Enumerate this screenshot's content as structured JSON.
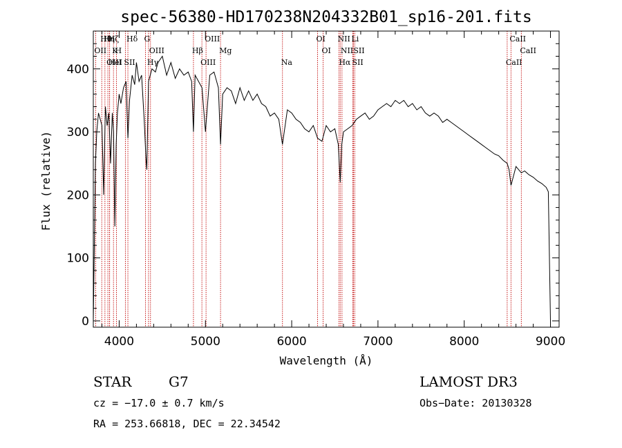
{
  "chart_data": {
    "type": "line",
    "title": "spec-56380-HD170238N204332B01_sp16-201.fits",
    "xlabel": "Wavelength (Å)",
    "ylabel": "Flux (relative)",
    "xlim": [
      3700,
      9100
    ],
    "ylim": [
      -10,
      460
    ],
    "xticks": [
      4000,
      5000,
      6000,
      7000,
      8000,
      9000
    ],
    "yticks": [
      0,
      100,
      200,
      300,
      400
    ],
    "series": [
      {
        "name": "flux",
        "x": [
          3700,
          3712,
          3725,
          3740,
          3760,
          3780,
          3800,
          3820,
          3840,
          3860,
          3880,
          3900,
          3920,
          3935,
          3950,
          3965,
          3980,
          4000,
          4020,
          4050,
          4080,
          4101,
          4120,
          4150,
          4180,
          4200,
          4230,
          4260,
          4290,
          4310,
          4320,
          4340,
          4380,
          4420,
          4450,
          4500,
          4550,
          4600,
          4650,
          4700,
          4750,
          4800,
          4840,
          4861,
          4880,
          4920,
          4960,
          5000,
          5050,
          5100,
          5150,
          5175,
          5200,
          5250,
          5300,
          5350,
          5400,
          5450,
          5500,
          5550,
          5600,
          5650,
          5700,
          5750,
          5800,
          5850,
          5893,
          5950,
          6000,
          6050,
          6100,
          6150,
          6200,
          6250,
          6300,
          6350,
          6400,
          6450,
          6500,
          6540,
          6563,
          6580,
          6600,
          6650,
          6700,
          6750,
          6800,
          6850,
          6900,
          6950,
          7000,
          7050,
          7100,
          7150,
          7200,
          7250,
          7300,
          7350,
          7400,
          7450,
          7500,
          7550,
          7600,
          7650,
          7700,
          7750,
          7800,
          7850,
          7900,
          7950,
          8000,
          8050,
          8100,
          8150,
          8200,
          8250,
          8300,
          8350,
          8400,
          8450,
          8498,
          8520,
          8542,
          8600,
          8662,
          8700,
          8750,
          8800,
          8850,
          8900,
          8950,
          8975,
          9000
        ],
        "values": [
          0,
          120,
          250,
          300,
          330,
          320,
          310,
          200,
          340,
          310,
          330,
          250,
          330,
          300,
          150,
          280,
          330,
          360,
          345,
          370,
          380,
          290,
          350,
          390,
          375,
          410,
          380,
          390,
          320,
          260,
          240,
          380,
          400,
          395,
          410,
          420,
          390,
          410,
          385,
          400,
          390,
          395,
          380,
          300,
          390,
          380,
          370,
          300,
          390,
          395,
          370,
          280,
          360,
          370,
          365,
          345,
          370,
          350,
          365,
          350,
          360,
          345,
          340,
          325,
          330,
          320,
          280,
          335,
          330,
          320,
          315,
          305,
          300,
          310,
          290,
          285,
          310,
          300,
          305,
          280,
          220,
          280,
          300,
          305,
          310,
          320,
          325,
          330,
          320,
          325,
          335,
          340,
          345,
          340,
          350,
          345,
          350,
          340,
          345,
          335,
          340,
          330,
          325,
          330,
          325,
          315,
          320,
          315,
          310,
          305,
          300,
          295,
          290,
          285,
          280,
          275,
          270,
          265,
          262,
          255,
          250,
          240,
          215,
          245,
          235,
          238,
          232,
          228,
          222,
          218,
          212,
          205,
          0
        ]
      }
    ],
    "lines": [
      {
        "name": "Hθ",
        "x": 3798
      },
      {
        "name": "OII",
        "x": 3727
      },
      {
        "name": "OIII",
        "x": 3869
      },
      {
        "name": "Hη",
        "x": 3835
      },
      {
        "name": "K",
        "x": 3934
      },
      {
        "name": "HeI",
        "x": 3889
      },
      {
        "name": "Hζ",
        "x": 3889
      },
      {
        "name": "H",
        "x": 3968
      },
      {
        "name": "SII",
        "x": 4072
      },
      {
        "name": "Hδ",
        "x": 4101
      },
      {
        "name": "OIII",
        "x": 4363
      },
      {
        "name": "Hγ",
        "x": 4340
      },
      {
        "name": "G",
        "x": 4305
      },
      {
        "name": "Hβ",
        "x": 4861
      },
      {
        "name": "OIII",
        "x": 4959
      },
      {
        "name": "OIII",
        "x": 5007
      },
      {
        "name": "Mg",
        "x": 5175
      },
      {
        "name": "Na",
        "x": 5893
      },
      {
        "name": "OI",
        "x": 6300
      },
      {
        "name": "OI",
        "x": 6364
      },
      {
        "name": "Hα",
        "x": 6563
      },
      {
        "name": "NII",
        "x": 6548
      },
      {
        "name": "NII",
        "x": 6583
      },
      {
        "name": "SII",
        "x": 6716
      },
      {
        "name": "Li",
        "x": 6708
      },
      {
        "name": "SII",
        "x": 6731
      },
      {
        "name": "CaII",
        "x": 8498
      },
      {
        "name": "CaII",
        "x": 8542
      },
      {
        "name": "CaII",
        "x": 8662
      }
    ]
  },
  "info": {
    "object_class": "STAR",
    "subclass": "G7",
    "survey": "LAMOST DR3",
    "redshift": "cz = −17.0 ± 0.7 km/s",
    "obs_date": "Obs−Date: 20130328",
    "coords": "RA = 253.66818, DEC =  22.34542"
  }
}
